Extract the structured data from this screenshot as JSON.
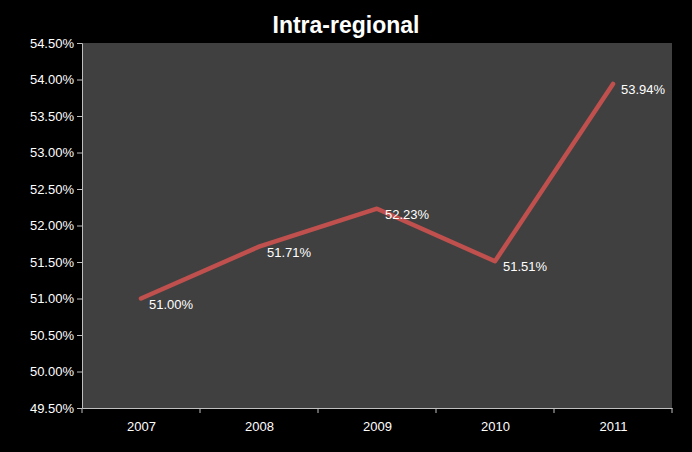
{
  "chart_data": {
    "type": "line",
    "title": "Intra-regional",
    "categories": [
      "2007",
      "2008",
      "2009",
      "2010",
      "2011"
    ],
    "values": [
      51.0,
      51.71,
      52.23,
      51.51,
      53.94
    ],
    "value_labels": [
      "51.00%",
      "51.71%",
      "52.23%",
      "51.51%",
      "53.94%"
    ],
    "color": "#c0504d",
    "ylim": [
      49.5,
      54.5
    ],
    "yticks": [
      {
        "value": 49.5,
        "label": "49.50%"
      },
      {
        "value": 50,
        "label": "50.00%"
      },
      {
        "value": 50.5,
        "label": "50.50%"
      },
      {
        "value": 51,
        "label": "51.00%"
      },
      {
        "value": 51.5,
        "label": "51.50%"
      },
      {
        "value": 52,
        "label": "52.00%"
      },
      {
        "value": 52.5,
        "label": "52.50%"
      },
      {
        "value": 53,
        "label": "53.00%"
      },
      {
        "value": 53.5,
        "label": "53.50%"
      },
      {
        "value": 54,
        "label": "54.00%"
      },
      {
        "value": 54.5,
        "label": "54.50%"
      }
    ],
    "grid": false,
    "data_labels": true
  }
}
